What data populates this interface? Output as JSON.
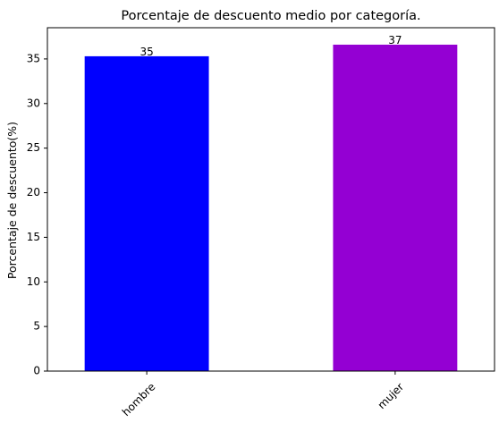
{
  "chart_data": {
    "type": "bar",
    "title": "Porcentaje de descuento medio por categoría.",
    "xlabel": "",
    "ylabel": "Porcentaje de descuento(%)",
    "categories": [
      "hombre",
      "mujer"
    ],
    "values": [
      35.3,
      36.6
    ],
    "data_labels": [
      "35",
      "37"
    ],
    "colors": [
      "#0000ff",
      "#9400d3"
    ],
    "ylim": [
      0,
      38.5
    ],
    "yticks": [
      0,
      5,
      10,
      15,
      20,
      25,
      30,
      35
    ],
    "grid": false,
    "legend": "none"
  }
}
